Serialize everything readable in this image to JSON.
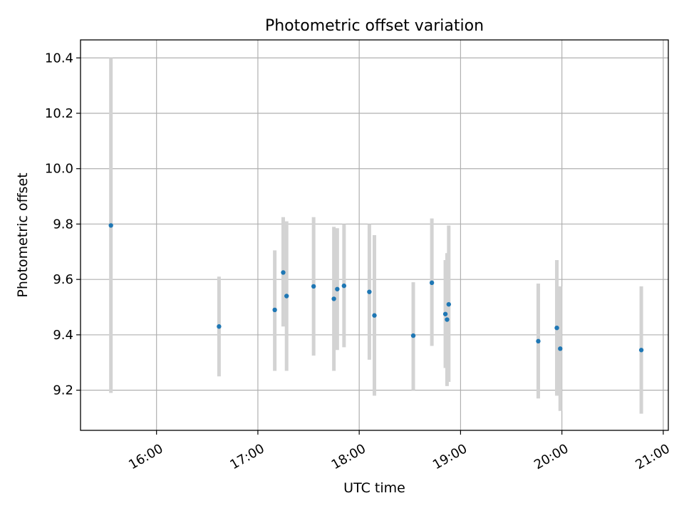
{
  "chart_data": {
    "type": "scatter",
    "title": "Photometric offset variation",
    "xlabel": "UTC time",
    "ylabel": "Photometric offset",
    "grid": true,
    "xlim": [
      "15:15",
      "21:03"
    ],
    "ylim": [
      9.055,
      10.465
    ],
    "x_ticks": [
      "16:00",
      "17:00",
      "18:00",
      "19:00",
      "20:00",
      "21:00"
    ],
    "y_ticks": [
      "9.2",
      "9.4",
      "9.6",
      "9.8",
      "10.0",
      "10.2",
      "10.4"
    ],
    "point_color": "#1f77b4",
    "errorbar_color": "#d3d3d3",
    "points": [
      {
        "x": "15:33",
        "y": 9.795,
        "y_low": 9.19,
        "y_high": 10.4
      },
      {
        "x": "16:37",
        "y": 9.43,
        "y_low": 9.25,
        "y_high": 9.61
      },
      {
        "x": "17:10",
        "y": 9.49,
        "y_low": 9.27,
        "y_high": 9.705
      },
      {
        "x": "17:15",
        "y": 9.625,
        "y_low": 9.43,
        "y_high": 9.825
      },
      {
        "x": "17:17",
        "y": 9.54,
        "y_low": 9.27,
        "y_high": 9.81
      },
      {
        "x": "17:33",
        "y": 9.575,
        "y_low": 9.325,
        "y_high": 9.825
      },
      {
        "x": "17:45",
        "y": 9.53,
        "y_low": 9.27,
        "y_high": 9.79
      },
      {
        "x": "17:47",
        "y": 9.565,
        "y_low": 9.345,
        "y_high": 9.785
      },
      {
        "x": "17:51",
        "y": 9.577,
        "y_low": 9.355,
        "y_high": 9.8
      },
      {
        "x": "18:06",
        "y": 9.555,
        "y_low": 9.31,
        "y_high": 9.8
      },
      {
        "x": "18:09",
        "y": 9.47,
        "y_low": 9.18,
        "y_high": 9.76
      },
      {
        "x": "18:32",
        "y": 9.397,
        "y_low": 9.2,
        "y_high": 9.59
      },
      {
        "x": "18:43",
        "y": 9.588,
        "y_low": 9.36,
        "y_high": 9.82
      },
      {
        "x": "18:51",
        "y": 9.475,
        "y_low": 9.28,
        "y_high": 9.67
      },
      {
        "x": "18:52",
        "y": 9.455,
        "y_low": 9.215,
        "y_high": 9.695
      },
      {
        "x": "18:53",
        "y": 9.51,
        "y_low": 9.23,
        "y_high": 9.795
      },
      {
        "x": "19:46",
        "y": 9.377,
        "y_low": 9.17,
        "y_high": 9.585
      },
      {
        "x": "19:57",
        "y": 9.425,
        "y_low": 9.18,
        "y_high": 9.67
      },
      {
        "x": "19:59",
        "y": 9.35,
        "y_low": 9.125,
        "y_high": 9.575
      },
      {
        "x": "20:47",
        "y": 9.345,
        "y_low": 9.115,
        "y_high": 9.575
      }
    ]
  }
}
